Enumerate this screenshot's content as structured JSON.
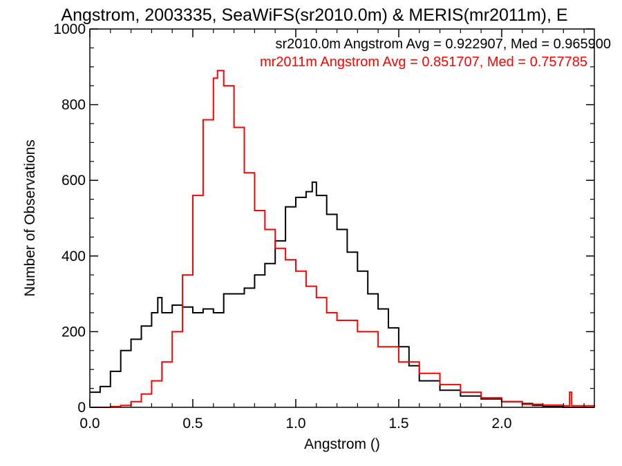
{
  "chart_data": {
    "type": "histogram-step",
    "title": "Angstrom, 2003335, SeaWiFS(sr2010.0m) & MERIS(mr2011m), E",
    "xlabel": "Angstrom ()",
    "ylabel": "Number of Observations",
    "xlim": [
      0,
      2.45
    ],
    "ylim": [
      0,
      1000
    ],
    "x_ticks": [
      0.0,
      0.5,
      1.0,
      1.5,
      2.0
    ],
    "x_tick_labels": [
      "0.0",
      "0.5",
      "1.0",
      "1.5",
      "2.0"
    ],
    "y_ticks": [
      0,
      200,
      400,
      600,
      800,
      1000
    ],
    "y_tick_labels": [
      "0",
      "200",
      "400",
      "600",
      "800",
      "1000"
    ],
    "grid": false,
    "annotations": [
      {
        "text": "sr2010.0m Angstrom Avg = 0.922907, Med = 0.965900",
        "color": "#000000"
      },
      {
        "text": "mr2011m Angstrom Avg = 0.851707, Med = 0.757785",
        "color": "#ff0000"
      }
    ],
    "series": [
      {
        "color": "#000000",
        "x": [
          0.0,
          0.05,
          0.1,
          0.15,
          0.2,
          0.25,
          0.3,
          0.33,
          0.35,
          0.4,
          0.45,
          0.5,
          0.55,
          0.6,
          0.65,
          0.7,
          0.75,
          0.8,
          0.85,
          0.9,
          0.95,
          1.0,
          1.05,
          1.08,
          1.1,
          1.15,
          1.2,
          1.25,
          1.3,
          1.35,
          1.4,
          1.45,
          1.5,
          1.55,
          1.6,
          1.7,
          1.8,
          1.9,
          2.0,
          2.1,
          2.15,
          2.2,
          2.3,
          2.45
        ],
        "y": [
          40,
          55,
          95,
          150,
          180,
          215,
          250,
          290,
          250,
          270,
          265,
          250,
          260,
          250,
          300,
          300,
          315,
          350,
          380,
          440,
          530,
          555,
          570,
          595,
          560,
          510,
          470,
          410,
          360,
          300,
          260,
          210,
          160,
          110,
          70,
          45,
          30,
          22,
          15,
          10,
          5,
          2,
          0,
          0
        ]
      },
      {
        "color": "#ff0000",
        "x": [
          0.0,
          0.05,
          0.1,
          0.15,
          0.2,
          0.25,
          0.3,
          0.35,
          0.4,
          0.45,
          0.5,
          0.55,
          0.6,
          0.62,
          0.65,
          0.7,
          0.75,
          0.8,
          0.85,
          0.9,
          0.95,
          1.0,
          1.05,
          1.1,
          1.15,
          1.2,
          1.3,
          1.4,
          1.5,
          1.6,
          1.7,
          1.8,
          1.9,
          2.0,
          2.1,
          2.2,
          2.3,
          2.33,
          2.34,
          2.45
        ],
        "y": [
          0,
          0,
          2,
          5,
          15,
          35,
          70,
          120,
          200,
          350,
          560,
          760,
          870,
          890,
          850,
          740,
          620,
          520,
          470,
          420,
          390,
          360,
          320,
          290,
          250,
          230,
          200,
          160,
          120,
          90,
          60,
          40,
          25,
          15,
          8,
          6,
          4,
          40,
          4,
          0
        ]
      }
    ]
  }
}
